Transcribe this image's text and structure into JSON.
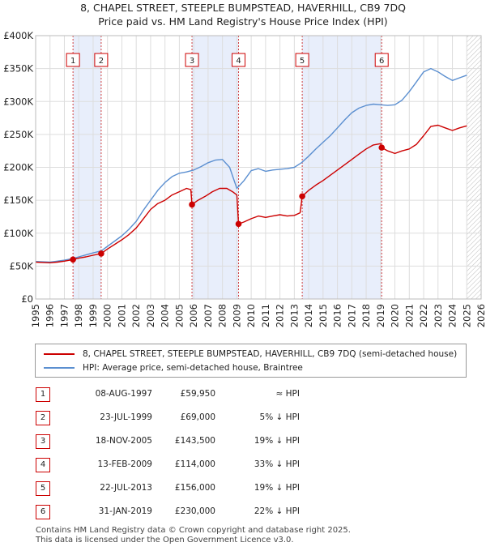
{
  "chart_data": {
    "type": "line",
    "title": "8, CHAPEL STREET, STEEPLE BUMPSTEAD, HAVERHILL, CB9 7DQ",
    "subtitle": "Price paid vs. HM Land Registry's House Price Index (HPI)",
    "xlim": [
      1995,
      2026
    ],
    "ylim": [
      0,
      400000
    ],
    "x_ticks": [
      "1995",
      "1996",
      "1997",
      "1998",
      "1999",
      "2000",
      "2001",
      "2002",
      "2003",
      "2004",
      "2005",
      "2006",
      "2007",
      "2008",
      "2009",
      "2010",
      "2011",
      "2012",
      "2013",
      "2014",
      "2015",
      "2016",
      "2017",
      "2018",
      "2019",
      "2020",
      "2021",
      "2022",
      "2023",
      "2024",
      "2025",
      "2026"
    ],
    "y_ticks": [
      {
        "value": 0,
        "label": "£0"
      },
      {
        "value": 50000,
        "label": "£50K"
      },
      {
        "value": 100000,
        "label": "£100K"
      },
      {
        "value": 150000,
        "label": "£150K"
      },
      {
        "value": 200000,
        "label": "£200K"
      },
      {
        "value": 250000,
        "label": "£250K"
      },
      {
        "value": 300000,
        "label": "£300K"
      },
      {
        "value": 350000,
        "label": "£350K"
      },
      {
        "value": 400000,
        "label": "£400K"
      }
    ],
    "grid": true,
    "shaded_periods": [
      [
        1997.6,
        1999.56
      ],
      [
        2005.88,
        2009.12
      ],
      [
        2013.55,
        2019.08
      ]
    ],
    "future_hatch_start": 2025.0,
    "series": [
      {
        "name": "8, CHAPEL STREET, STEEPLE BUMPSTEAD, HAVERHILL, CB9 7DQ (semi-detached house)",
        "color": "#cc0000",
        "x": [
          1995.0,
          1995.5,
          1996.0,
          1996.5,
          1997.0,
          1997.6,
          1998.0,
          1998.5,
          1999.0,
          1999.56,
          2000.0,
          2000.5,
          2001.0,
          2001.5,
          2002.0,
          2002.5,
          2003.0,
          2003.5,
          2004.0,
          2004.5,
          2005.0,
          2005.5,
          2005.8,
          2005.88,
          2006.3,
          2006.8,
          2007.3,
          2007.8,
          2008.3,
          2008.7,
          2009.0,
          2009.12,
          2009.5,
          2010.0,
          2010.5,
          2011.0,
          2011.5,
          2012.0,
          2012.5,
          2013.0,
          2013.4,
          2013.55,
          2014.0,
          2014.5,
          2015.0,
          2015.5,
          2016.0,
          2016.5,
          2017.0,
          2017.5,
          2018.0,
          2018.5,
          2019.0,
          2019.08,
          2019.5,
          2020.0,
          2020.5,
          2021.0,
          2021.5,
          2022.0,
          2022.5,
          2023.0,
          2023.5,
          2024.0,
          2024.5,
          2025.0
        ],
        "y": [
          56000,
          55500,
          55000,
          56000,
          57500,
          59950,
          62000,
          64000,
          66500,
          69000,
          76000,
          83000,
          90000,
          98000,
          108000,
          122000,
          136000,
          145000,
          150000,
          158000,
          163000,
          168000,
          166000,
          143500,
          150000,
          156000,
          163000,
          168000,
          168000,
          163000,
          158000,
          114000,
          117000,
          122000,
          126000,
          124000,
          126000,
          128000,
          126000,
          127000,
          131000,
          156000,
          165000,
          173000,
          180000,
          188000,
          196000,
          204000,
          212000,
          220000,
          228000,
          234000,
          236000,
          230000,
          225000,
          221000,
          225000,
          228000,
          235000,
          248000,
          262000,
          264000,
          260000,
          256000,
          260000,
          263000
        ]
      },
      {
        "name": "HPI: Average price, semi-detached house, Braintree",
        "color": "#5b8fd0",
        "x": [
          1995.0,
          1995.5,
          1996.0,
          1996.5,
          1997.0,
          1997.6,
          1998.0,
          1998.5,
          1999.0,
          1999.56,
          2000.0,
          2000.5,
          2001.0,
          2001.5,
          2002.0,
          2002.5,
          2003.0,
          2003.5,
          2004.0,
          2004.5,
          2005.0,
          2005.5,
          2006.0,
          2006.5,
          2007.0,
          2007.5,
          2008.0,
          2008.5,
          2009.0,
          2009.5,
          2010.0,
          2010.5,
          2011.0,
          2011.5,
          2012.0,
          2012.5,
          2013.0,
          2013.5,
          2014.0,
          2014.5,
          2015.0,
          2015.5,
          2016.0,
          2016.5,
          2017.0,
          2017.5,
          2018.0,
          2018.5,
          2019.0,
          2019.5,
          2020.0,
          2020.5,
          2021.0,
          2021.5,
          2022.0,
          2022.5,
          2023.0,
          2023.5,
          2024.0,
          2024.5,
          2025.0
        ],
        "y": [
          57000,
          56500,
          56000,
          57500,
          59000,
          61500,
          64000,
          67000,
          70000,
          73000,
          80000,
          88000,
          96000,
          106000,
          118000,
          135000,
          150000,
          165000,
          177000,
          186000,
          191000,
          193000,
          196000,
          201000,
          207000,
          211000,
          212000,
          200000,
          168000,
          180000,
          195000,
          198000,
          194000,
          196000,
          197000,
          198000,
          200000,
          207000,
          217000,
          228000,
          238000,
          248000,
          260000,
          272000,
          283000,
          290000,
          294000,
          296000,
          295000,
          294000,
          295000,
          302000,
          315000,
          330000,
          345000,
          350000,
          345000,
          338000,
          332000,
          336000,
          340000
        ]
      }
    ],
    "markers": [
      {
        "id": "1",
        "x": 1997.6,
        "y": 59950
      },
      {
        "id": "2",
        "x": 1999.56,
        "y": 69000
      },
      {
        "id": "3",
        "x": 2005.88,
        "y": 143500
      },
      {
        "id": "4",
        "x": 2009.12,
        "y": 114000
      },
      {
        "id": "5",
        "x": 2013.55,
        "y": 156000
      },
      {
        "id": "6",
        "x": 2019.08,
        "y": 230000
      }
    ]
  },
  "legend": {
    "items": [
      {
        "label": "8, CHAPEL STREET, STEEPLE BUMPSTEAD, HAVERHILL, CB9 7DQ (semi-detached house)",
        "color": "#cc0000"
      },
      {
        "label": "HPI: Average price, semi-detached house, Braintree",
        "color": "#5b8fd0"
      }
    ]
  },
  "sales": [
    {
      "id": "1",
      "date": "08-AUG-1997",
      "price": "£59,950",
      "hpi": "≈ HPI"
    },
    {
      "id": "2",
      "date": "23-JUL-1999",
      "price": "£69,000",
      "hpi": "5% ↓ HPI"
    },
    {
      "id": "3",
      "date": "18-NOV-2005",
      "price": "£143,500",
      "hpi": "19% ↓ HPI"
    },
    {
      "id": "4",
      "date": "13-FEB-2009",
      "price": "£114,000",
      "hpi": "33% ↓ HPI"
    },
    {
      "id": "5",
      "date": "22-JUL-2013",
      "price": "£156,000",
      "hpi": "19% ↓ HPI"
    },
    {
      "id": "6",
      "date": "31-JAN-2019",
      "price": "£230,000",
      "hpi": "22% ↓ HPI"
    }
  ],
  "footer": {
    "line1": "Contains HM Land Registry data © Crown copyright and database right 2025.",
    "line2": "This data is licensed under the Open Government Licence v3.0."
  }
}
